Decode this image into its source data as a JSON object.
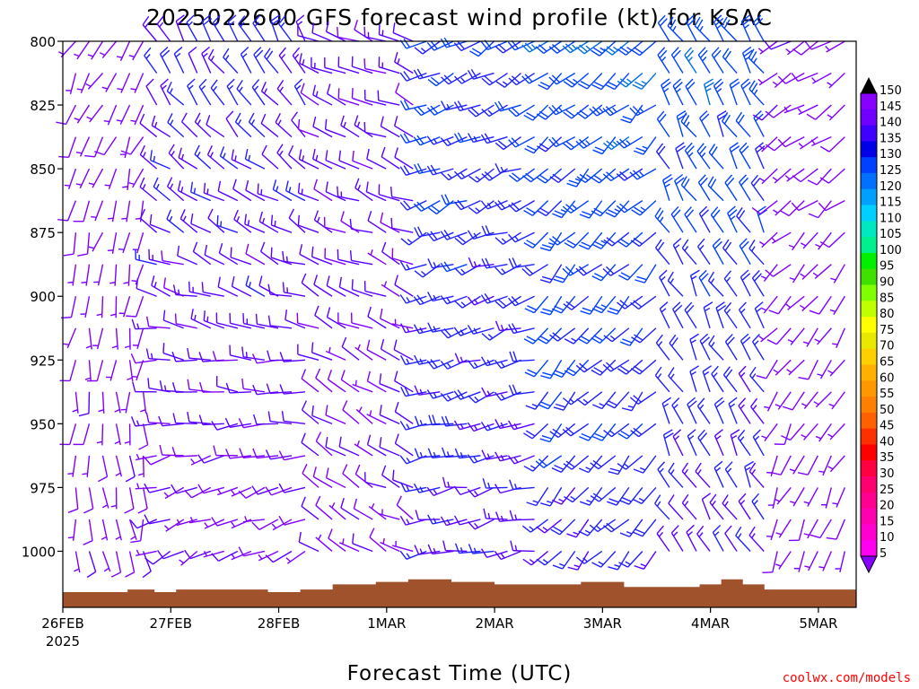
{
  "chart_data": {
    "type": "wind-barb profile",
    "title": "2025022600 GFS forecast wind profile (kt) for KSAC",
    "xlabel": "Forecast Time (UTC)",
    "ylabel": "",
    "y_ticks": [
      "800",
      "825",
      "850",
      "875",
      "900",
      "925",
      "950",
      "975",
      "1000"
    ],
    "ylim": [
      800,
      1022
    ],
    "x_ticks": [
      "26FEB",
      "27FEB",
      "28FEB",
      "1MAR",
      "2MAR",
      "3MAR",
      "4MAR",
      "5MAR"
    ],
    "x_year": "2025",
    "xlim_days": [
      0,
      7.35
    ],
    "ground_color": "#a0522d",
    "ground_pressure": {
      "x": [
        0,
        0.4,
        0.6,
        0.85,
        1.05,
        1.5,
        1.9,
        2.2,
        2.5,
        2.9,
        3.2,
        3.6,
        4.0,
        4.4,
        4.8,
        5.2,
        5.6,
        5.9,
        6.1,
        6.3,
        6.5,
        6.7,
        7.0,
        7.35
      ],
      "p": [
        1016,
        1016,
        1015,
        1016,
        1015,
        1015,
        1016,
        1015,
        1013,
        1012,
        1011,
        1012,
        1013,
        1013,
        1012,
        1014,
        1014,
        1013,
        1011,
        1013,
        1015,
        1015,
        1015,
        1016
      ]
    },
    "colorbar": {
      "labels": [
        "150",
        "145",
        "140",
        "135",
        "130",
        "125",
        "120",
        "115",
        "110",
        "105",
        "100",
        "95",
        "90",
        "85",
        "80",
        "75",
        "70",
        "65",
        "60",
        "55",
        "50",
        "45",
        "40",
        "35",
        "30",
        "25",
        "20",
        "15",
        "10",
        "5"
      ],
      "colors": [
        "#8800ff",
        "#7000ff",
        "#4000ff",
        "#0000e8",
        "#0040ff",
        "#0070ff",
        "#00a0ff",
        "#00d0ff",
        "#00e8c0",
        "#00f090",
        "#00f000",
        "#40e000",
        "#80ff00",
        "#c0ff00",
        "#ffff00",
        "#e8e800",
        "#ffd000",
        "#ffb000",
        "#ff9800",
        "#ff8000",
        "#ff6000",
        "#ff3000",
        "#ff0000",
        "#ff0040",
        "#ff0070",
        "#ff0090",
        "#ff00b0",
        "#ff00d0",
        "#ff00f0"
      ]
    },
    "wind_sectors": [
      {
        "x": [
          0.0,
          0.85
        ],
        "dir_low": 170,
        "dir_high": 210,
        "spd_low": 10,
        "spd_high": 8
      },
      {
        "x": [
          0.85,
          2.3
        ],
        "dir_low": 240,
        "dir_high": 330,
        "spd_low": 10,
        "spd_high": 18
      },
      {
        "x": [
          2.3,
          3.3
        ],
        "dir_low": 300,
        "dir_high": 290,
        "spd_low": 10,
        "spd_high": 14
      },
      {
        "x": [
          3.3,
          4.4
        ],
        "dir_low": 260,
        "dir_high": 240,
        "spd_low": 16,
        "spd_high": 22
      },
      {
        "x": [
          4.4,
          5.5
        ],
        "dir_low": 220,
        "dir_high": 230,
        "spd_low": 18,
        "spd_high": 26
      },
      {
        "x": [
          5.5,
          6.6
        ],
        "dir_low": 330,
        "dir_high": 330,
        "spd_low": 16,
        "spd_high": 26
      },
      {
        "x": [
          6.6,
          7.35
        ],
        "dir_low": 200,
        "dir_high": 240,
        "spd_low": 8,
        "spd_high": 10
      }
    ]
  },
  "credit": "coolwx.com/models"
}
